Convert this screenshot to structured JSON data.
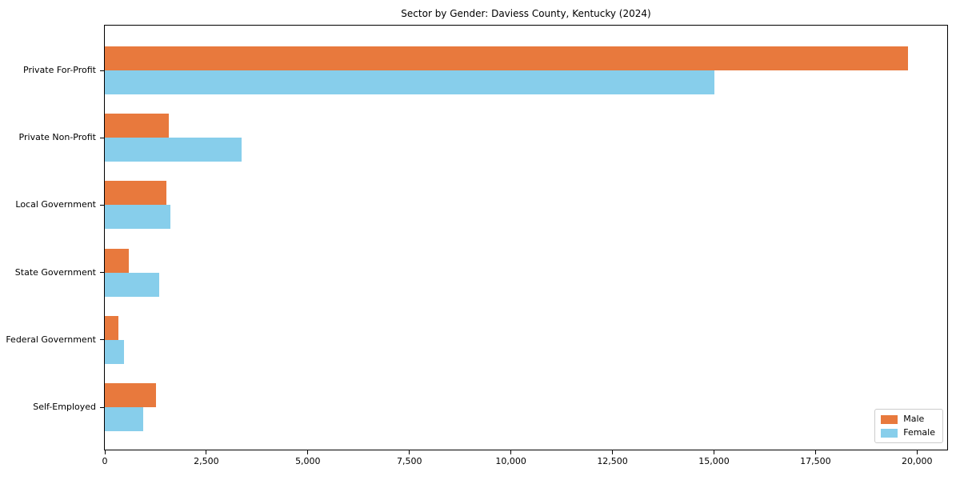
{
  "chart_data": {
    "type": "bar",
    "orientation": "horizontal",
    "title": "Sector by Gender: Daviess County, Kentucky (2024)",
    "categories": [
      "Private For-Profit",
      "Private Non-Profit",
      "Local Government",
      "State Government",
      "Federal Government",
      "Self-Employed"
    ],
    "series": [
      {
        "name": "Male",
        "color": "#e8793d",
        "values": [
          19780,
          1580,
          1520,
          590,
          325,
          1265
        ]
      },
      {
        "name": "Female",
        "color": "#87ceeb",
        "values": [
          15010,
          3370,
          1620,
          1340,
          465,
          950
        ]
      }
    ],
    "xlabel": "",
    "ylabel": "",
    "xlim": [
      0,
      20800
    ],
    "x_ticks": [
      0,
      2500,
      5000,
      7500,
      10000,
      12500,
      15000,
      17500,
      20000
    ],
    "x_tick_labels": [
      "0",
      "2,500",
      "5,000",
      "7,500",
      "10,000",
      "12,500",
      "15,000",
      "17,500",
      "20,000"
    ],
    "grid": false,
    "legend": {
      "position": "lower right",
      "entries": [
        "Male",
        "Female"
      ]
    }
  }
}
